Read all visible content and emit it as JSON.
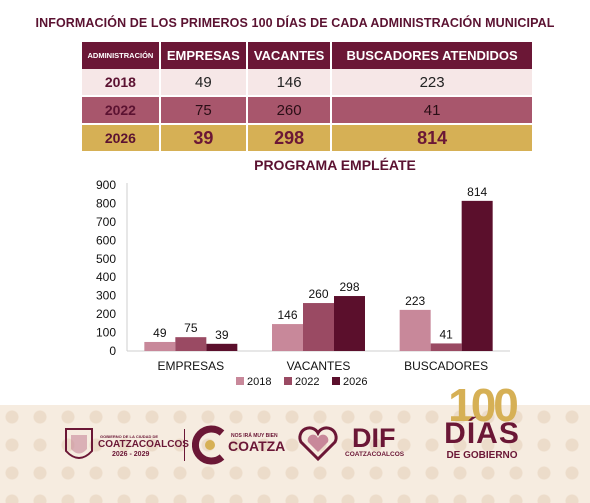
{
  "page_title": "INFORMACIÓN DE LOS PRIMEROS 100 DÍAS DE CADA ADMINISTRACIÓN MUNICIPAL",
  "table": {
    "headers": [
      "ADMINISTRACIÓN",
      "EMPRESAS",
      "VACANTES",
      "BUSCADORES ATENDIDOS"
    ],
    "rows": [
      [
        "2018",
        "49",
        "146",
        "223"
      ],
      [
        "2022",
        "75",
        "260",
        "41"
      ],
      [
        "2026",
        "39",
        "298",
        "814"
      ]
    ]
  },
  "colors": {
    "s2018": "#c8889a",
    "s2022": "#9a4a63",
    "s2026": "#5b0f2c",
    "brand": "#6b1736",
    "gold": "#d6b055"
  },
  "chart_data": {
    "type": "bar",
    "title": "PROGRAMA EMPLÉATE",
    "categories": [
      "EMPRESAS",
      "VACANTES",
      "BUSCADORES"
    ],
    "series": [
      {
        "name": "2018",
        "values": [
          49,
          146,
          223
        ]
      },
      {
        "name": "2022",
        "values": [
          75,
          260,
          41
        ]
      },
      {
        "name": "2026",
        "values": [
          39,
          298,
          814
        ]
      }
    ],
    "ylim": [
      0,
      900
    ],
    "yticks": [
      0,
      100,
      200,
      300,
      400,
      500,
      600,
      700,
      800,
      900
    ],
    "grid": false,
    "legend": "bottom"
  },
  "footer": {
    "gov_line1": "GOBIERNO DE LA CIUDAD DE",
    "gov_name": "COATZACOALCOS",
    "gov_years": "2026 - 2029",
    "slogan": "NOS IRÁ MUY BIEN",
    "coatza": "COATZA",
    "dif": "DIF",
    "dif_sub": "COATZACOALCOS",
    "badge_num": "100",
    "badge_word": "DÍAS",
    "badge_sub": "DE GOBIERNO"
  }
}
